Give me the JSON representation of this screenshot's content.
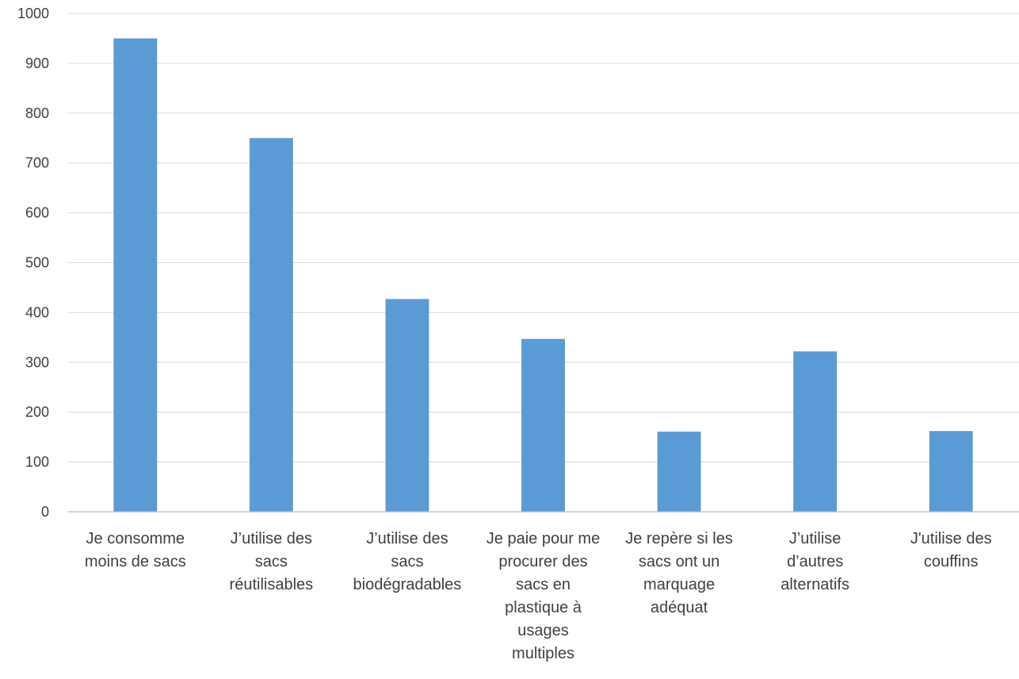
{
  "chart_data": {
    "type": "bar",
    "title": "",
    "xlabel": "",
    "ylabel": "",
    "ylim": [
      0,
      1000
    ],
    "yticks": [
      0,
      100,
      200,
      300,
      400,
      500,
      600,
      700,
      800,
      900,
      1000
    ],
    "grid": true,
    "legend": "none",
    "bar_color": "#5b9bd5",
    "categories": [
      [
        "Je consomme",
        "moins de sacs"
      ],
      [
        "J’utilise des",
        "sacs",
        "réutilisables"
      ],
      [
        "J’utilise des",
        "sacs",
        "biodégradables"
      ],
      [
        "Je paie pour me",
        "procurer des",
        "sacs en",
        "plastique à",
        "usages",
        "multiples"
      ],
      [
        "Je repère si les",
        "sacs ont un",
        "marquage",
        "adéquat"
      ],
      [
        "J’utilise",
        "d’autres",
        "alternatifs"
      ],
      [
        "J'utilise des",
        "couffins"
      ]
    ],
    "values": [
      950,
      750,
      427,
      347,
      161,
      322,
      162
    ]
  }
}
